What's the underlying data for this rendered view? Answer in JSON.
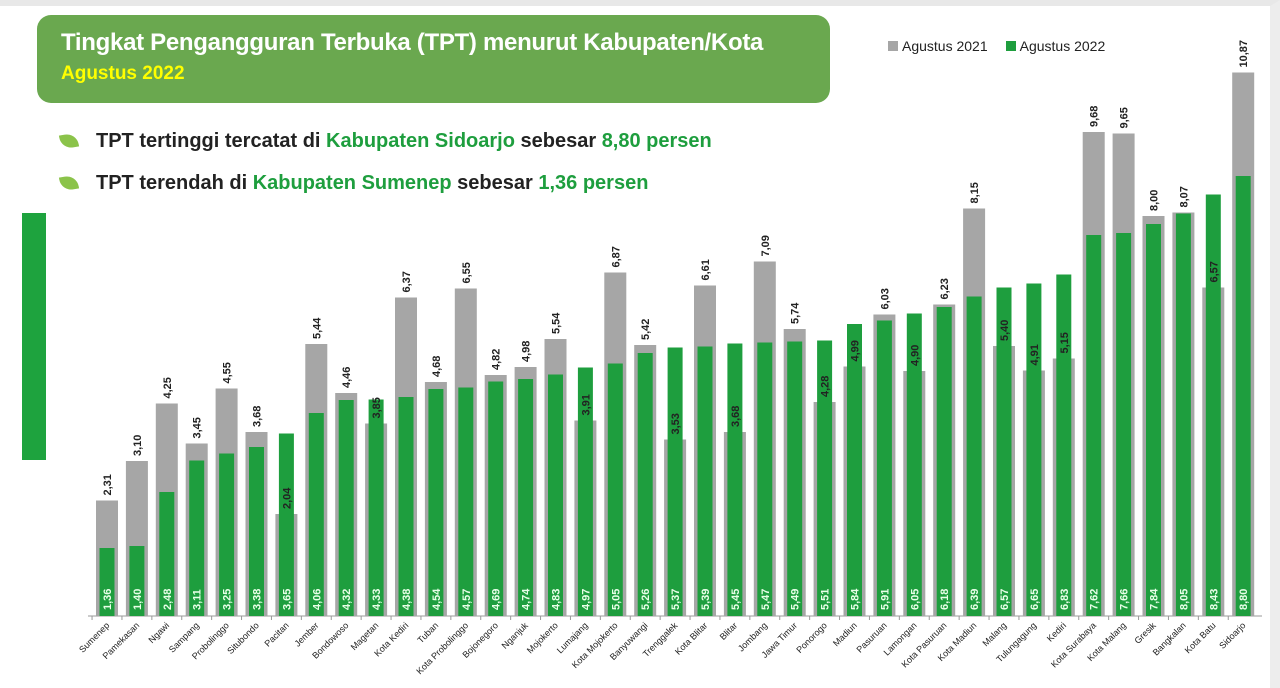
{
  "header": {
    "title": "Tingkat Pengangguran Terbuka (TPT) menurut Kabupaten/Kota",
    "subtitle": "Agustus 2022"
  },
  "bullets": [
    {
      "pre": "TPT tertinggi tercatat di ",
      "place": "Kabupaten Sidoarjo",
      "mid": " sebesar ",
      "value": "8,80 persen"
    },
    {
      "pre": "TPT terendah di ",
      "place": "Kabupaten Sumenep",
      "mid": " sebesar ",
      "value": "1,36 persen"
    }
  ],
  "colors": {
    "header": "#6aa84f",
    "series_2021": "#a6a6a6",
    "series_2022": "#1e9e3e",
    "subtitle": "#ffff00"
  },
  "chart_data": {
    "type": "bar",
    "legend_position": "top-right",
    "grid": false,
    "ylim": [
      0,
      11
    ],
    "categories": [
      "Sumenep",
      "Pamekasan",
      "Ngawi",
      "Sampang",
      "Probolinggo",
      "Situbondo",
      "Pacitan",
      "Jember",
      "Bondowoso",
      "Magetan",
      "Kota Kediri",
      "Tuban",
      "Kota Probolinggo",
      "Bojonegoro",
      "Nganjuk",
      "Mojokerto",
      "Lumajang",
      "Kota Mojokerto",
      "Banyuwangi",
      "Trenggalek",
      "Kota Blitar",
      "Blitar",
      "Jombang",
      "Jawa Timur",
      "Ponorogo",
      "Madiun",
      "Pasuruan",
      "Lamongan",
      "Kota Pasuruan",
      "Kota Madiun",
      "Malang",
      "Tulungagung",
      "Kediri",
      "Kota Surabaya",
      "Kota Malang",
      "Gresik",
      "Bangkalan",
      "Kota Batu",
      "Sidoarjo"
    ],
    "series": [
      {
        "name": "Agustus 2021",
        "values": [
          2.31,
          3.1,
          4.25,
          3.45,
          4.55,
          3.68,
          2.04,
          5.44,
          4.46,
          3.85,
          6.37,
          4.68,
          6.55,
          4.82,
          4.98,
          5.54,
          3.91,
          6.87,
          5.42,
          3.53,
          6.61,
          3.68,
          7.09,
          5.74,
          4.28,
          4.99,
          6.03,
          4.9,
          6.23,
          8.15,
          5.4,
          4.91,
          5.15,
          9.68,
          9.65,
          8.0,
          8.07,
          6.57,
          10.87
        ]
      },
      {
        "name": "Agustus 2022",
        "values": [
          1.36,
          1.4,
          2.48,
          3.11,
          3.25,
          3.38,
          3.65,
          4.06,
          4.32,
          4.33,
          4.38,
          4.54,
          4.57,
          4.69,
          4.74,
          4.83,
          4.97,
          5.05,
          5.26,
          5.37,
          5.39,
          5.45,
          5.47,
          5.49,
          5.51,
          5.84,
          5.91,
          6.05,
          6.18,
          6.39,
          6.57,
          6.65,
          6.83,
          7.62,
          7.66,
          7.84,
          8.05,
          8.43,
          8.8
        ]
      }
    ]
  }
}
